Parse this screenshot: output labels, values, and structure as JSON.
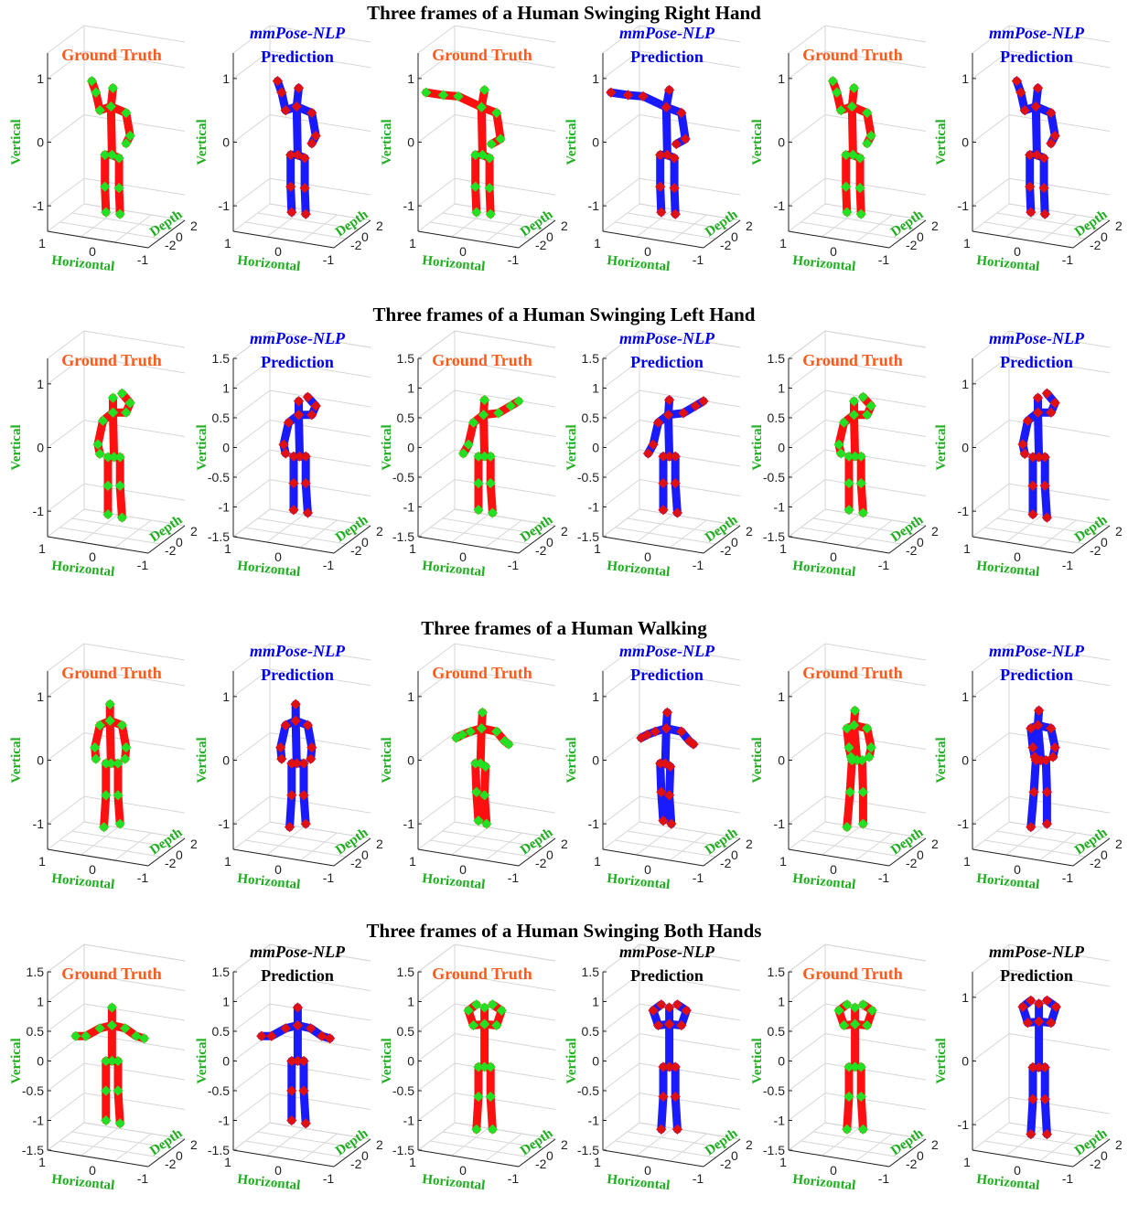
{
  "colors": {
    "gt_title": "#ff5a1a",
    "pred_title_blue": "#0000ee",
    "pred_title_black": "#000000",
    "axis_label": "#1fae1f",
    "skeleton_red": "#ff1010",
    "skeleton_blue": "#1a1aff",
    "joint_green": "#22e022",
    "joint_red": "#e01010",
    "grid": "#d6d6d6",
    "axis": "#222222"
  },
  "chart_data": {
    "type": "scatter",
    "panel_labels": {
      "ground_truth": "Ground Truth",
      "prediction_model": "mmPose-NLP",
      "prediction_word": "Prediction"
    },
    "axis_labels": {
      "x": "Horizontal",
      "y": "Depth",
      "z": "Vertical"
    },
    "x_ticks": [
      "1",
      "0",
      "-1"
    ],
    "y_ticks": [
      "-2",
      "0",
      "2"
    ],
    "rows": [
      {
        "title": "Three frames of a Human Swinging Right Hand",
        "prediction_title_color": "blue",
        "panels": [
          {
            "kind": "gt",
            "zticks": [
              "1",
              "0",
              "-1"
            ],
            "zlim": [
              -1.4,
              1.4
            ],
            "pose": "right_up"
          },
          {
            "kind": "pred",
            "zticks": [
              "1",
              "0",
              "-1"
            ],
            "zlim": [
              -1.4,
              1.4
            ],
            "pose": "right_up"
          },
          {
            "kind": "gt",
            "zticks": [
              "1",
              "0",
              "-1"
            ],
            "zlim": [
              -1.4,
              1.4
            ],
            "pose": "right_side"
          },
          {
            "kind": "pred",
            "zticks": [
              "1",
              "0",
              "-1"
            ],
            "zlim": [
              -1.4,
              1.4
            ],
            "pose": "right_side"
          },
          {
            "kind": "gt",
            "zticks": [
              "1",
              "0",
              "-1"
            ],
            "zlim": [
              -1.4,
              1.4
            ],
            "pose": "right_up"
          },
          {
            "kind": "pred",
            "zticks": [
              "1",
              "0",
              "-1"
            ],
            "zlim": [
              -1.4,
              1.4
            ],
            "pose": "right_up"
          }
        ]
      },
      {
        "title": "Three frames of a Human Swinging Left Hand",
        "prediction_title_color": "blue",
        "panels": [
          {
            "kind": "gt",
            "zticks": [
              "1",
              "0",
              "-1"
            ],
            "zlim": [
              -1.4,
              1.4
            ],
            "pose": "left_head"
          },
          {
            "kind": "pred",
            "zticks": [
              "1.5",
              "1",
              "0.5",
              "0",
              "-0.5",
              "-1",
              "-1.5"
            ],
            "zlim": [
              -1.5,
              1.5
            ],
            "pose": "left_head"
          },
          {
            "kind": "gt",
            "zticks": [
              "1.5",
              "1",
              "0.5",
              "0",
              "-0.5",
              "-1",
              "-1.5"
            ],
            "zlim": [
              -1.5,
              1.5
            ],
            "pose": "left_up"
          },
          {
            "kind": "pred",
            "zticks": [
              "1.5",
              "1",
              "0.5",
              "0",
              "-0.5",
              "-1",
              "-1.5"
            ],
            "zlim": [
              -1.5,
              1.5
            ],
            "pose": "left_up"
          },
          {
            "kind": "gt",
            "zticks": [
              "1.5",
              "1",
              "0.5",
              "0",
              "-0.5",
              "-1",
              "-1.5"
            ],
            "zlim": [
              -1.5,
              1.5
            ],
            "pose": "left_head"
          },
          {
            "kind": "pred",
            "zticks": [
              "1",
              "0",
              "-1"
            ],
            "zlim": [
              -1.4,
              1.4
            ],
            "pose": "left_head"
          }
        ]
      },
      {
        "title": "Three frames of a Human Walking",
        "prediction_title_color": "blue",
        "panels": [
          {
            "kind": "gt",
            "zticks": [
              "1",
              "0",
              "-1"
            ],
            "zlim": [
              -1.4,
              1.4
            ],
            "pose": "walk_a"
          },
          {
            "kind": "pred",
            "zticks": [
              "1",
              "0",
              "-1"
            ],
            "zlim": [
              -1.4,
              1.4
            ],
            "pose": "walk_a"
          },
          {
            "kind": "gt",
            "zticks": [
              "1",
              "0",
              "-1"
            ],
            "zlim": [
              -1.4,
              1.4
            ],
            "pose": "walk_b"
          },
          {
            "kind": "pred",
            "zticks": [
              "1",
              "0",
              "-1"
            ],
            "zlim": [
              -1.4,
              1.4
            ],
            "pose": "walk_b"
          },
          {
            "kind": "gt",
            "zticks": [
              "1",
              "0",
              "-1"
            ],
            "zlim": [
              -1.4,
              1.4
            ],
            "pose": "walk_c"
          },
          {
            "kind": "pred",
            "zticks": [
              "1",
              "0",
              "-1"
            ],
            "zlim": [
              -1.4,
              1.4
            ],
            "pose": "walk_c"
          }
        ]
      },
      {
        "title": "Three frames of a Human Swinging Both Hands",
        "prediction_title_color": "black",
        "panels": [
          {
            "kind": "gt",
            "zticks": [
              "1.5",
              "1",
              "0.5",
              "0",
              "-0.5",
              "-1",
              "-1.5"
            ],
            "zlim": [
              -1.5,
              1.5
            ],
            "pose": "both_side"
          },
          {
            "kind": "pred",
            "zticks": [
              "1.5",
              "1",
              "0.5",
              "0",
              "-0.5",
              "-1",
              "-1.5"
            ],
            "zlim": [
              -1.5,
              1.5
            ],
            "pose": "both_side"
          },
          {
            "kind": "gt",
            "zticks": [
              "1.5",
              "1",
              "0.5",
              "0",
              "-0.5",
              "-1",
              "-1.5"
            ],
            "zlim": [
              -1.5,
              1.5
            ],
            "pose": "both_head"
          },
          {
            "kind": "pred",
            "zticks": [
              "1.5",
              "1",
              "0.5",
              "0",
              "-0.5",
              "-1",
              "-1.5"
            ],
            "zlim": [
              -1.5,
              1.5
            ],
            "pose": "both_head"
          },
          {
            "kind": "gt",
            "zticks": [
              "1.5",
              "1",
              "0.5",
              "0",
              "-0.5",
              "-1",
              "-1.5"
            ],
            "zlim": [
              -1.5,
              1.5
            ],
            "pose": "both_head"
          },
          {
            "kind": "pred",
            "zticks": [
              "1",
              "0",
              "-1"
            ],
            "zlim": [
              -1.4,
              1.4
            ],
            "pose": "both_head"
          }
        ]
      }
    ]
  }
}
